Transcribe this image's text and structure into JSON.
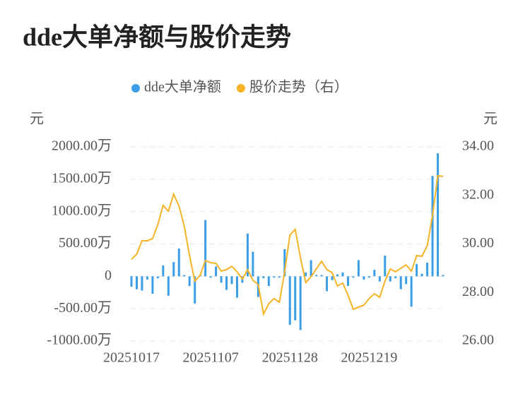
{
  "chart_data": {
    "type": "bar-line",
    "title": "dde大单净额与股价走势",
    "ylabel": "元",
    "y2label": "元",
    "categories": [
      "20251017",
      null,
      null,
      null,
      null,
      null,
      null,
      null,
      null,
      null,
      null,
      null,
      null,
      null,
      null,
      "20251107",
      null,
      null,
      null,
      null,
      null,
      null,
      null,
      null,
      null,
      null,
      null,
      null,
      null,
      null,
      "20251128",
      null,
      null,
      null,
      null,
      null,
      null,
      null,
      null,
      null,
      null,
      null,
      null,
      null,
      null,
      "20251219",
      null,
      null,
      null,
      null,
      null,
      null,
      null,
      null,
      null,
      null,
      null,
      null,
      null,
      null
    ],
    "series": [
      {
        "name": "dde大单净额",
        "color": "#3a9ee6",
        "type": "bar",
        "values": [
          -160,
          -200,
          -220,
          -50,
          -270,
          -30,
          170,
          -300,
          220,
          430,
          20,
          -150,
          -420,
          20,
          870,
          -20,
          150,
          -100,
          -210,
          -120,
          -330,
          -100,
          660,
          380,
          -320,
          -30,
          -150,
          -20,
          -20,
          420,
          -750,
          -680,
          -830,
          60,
          250,
          20,
          20,
          -230,
          -60,
          30,
          60,
          -150,
          -20,
          250,
          -50,
          -20,
          100,
          -80,
          320,
          -80,
          -30,
          -200,
          -120,
          -470,
          190,
          40,
          210,
          1550,
          1900,
          20
        ]
      },
      {
        "name": "股价走势（右）",
        "color": "#f5b325",
        "type": "line",
        "axis": "y2",
        "values": [
          29.37,
          29.58,
          30.13,
          30.13,
          30.22,
          30.8,
          31.59,
          31.35,
          32.05,
          31.56,
          30.74,
          29.52,
          28.47,
          28.71,
          29.32,
          29.23,
          29.2,
          28.88,
          28.94,
          29.08,
          28.85,
          28.56,
          28.94,
          28.5,
          28.33,
          27.11,
          27.54,
          27.75,
          27.6,
          28.85,
          30.36,
          30.6,
          29.43,
          28.41,
          28.65,
          28.97,
          29.29,
          28.94,
          28.82,
          28.27,
          28.39,
          27.89,
          27.31,
          27.4,
          27.48,
          27.75,
          27.95,
          27.8,
          28.47,
          28.97,
          28.85,
          29.0,
          29.14,
          28.88,
          29.52,
          29.49,
          29.93,
          31.18,
          32.81,
          32.78
        ]
      }
    ],
    "ylim": [
      -1000,
      2000
    ],
    "yticks": [
      {
        "value": -1000,
        "label": "-1000.00万"
      },
      {
        "value": -500,
        "label": "-500.00万"
      },
      0,
      {
        "value": 500,
        "label": "500.00万"
      },
      {
        "value": 1000,
        "label": "1000.00万"
      },
      {
        "value": 1500,
        "label": "1500.00万"
      },
      {
        "value": 2000,
        "label": "2000.00万"
      }
    ],
    "y2lim": [
      26,
      34
    ],
    "y2ticks": [
      {
        "value": 26,
        "label": "26.00"
      },
      {
        "value": 28,
        "label": "28.00"
      },
      {
        "value": 30,
        "label": "30.00"
      },
      {
        "value": 32,
        "label": "32.00"
      },
      {
        "value": 34,
        "label": "34.00"
      }
    ],
    "grid": true
  }
}
